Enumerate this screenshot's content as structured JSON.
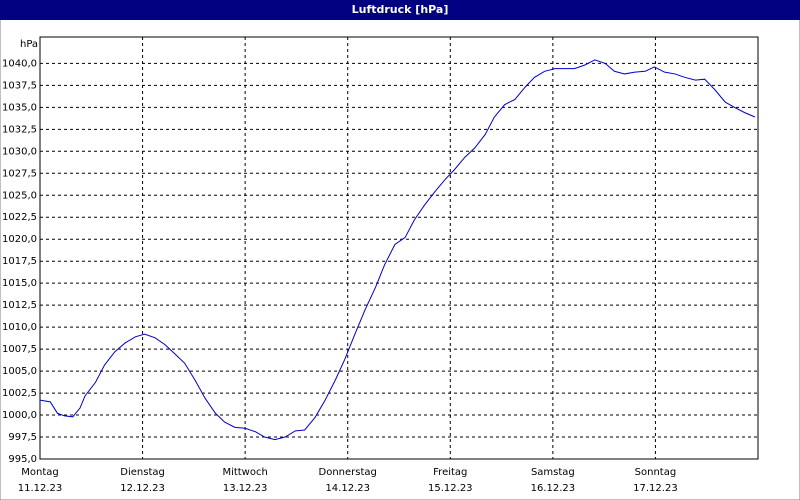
{
  "chart_data": {
    "type": "line",
    "title": "Luftdruck [hPa]",
    "y_label": "hPa",
    "x": [
      0,
      0.1,
      0.17,
      0.24,
      0.32,
      0.39,
      0.44,
      0.54,
      0.63,
      0.73,
      0.83,
      0.93,
      1.02,
      1.12,
      1.22,
      1.32,
      1.41,
      1.51,
      1.61,
      1.71,
      1.8,
      1.9,
      2.0,
      2.1,
      2.19,
      2.29,
      2.39,
      2.49,
      2.58,
      2.68,
      2.78,
      2.88,
      2.97,
      3.07,
      3.17,
      3.27,
      3.36,
      3.46,
      3.56,
      3.65,
      3.75,
      3.85,
      3.95,
      4.04,
      4.14,
      4.24,
      4.34,
      4.43,
      4.53,
      4.63,
      4.73,
      4.82,
      4.92,
      5.02,
      5.12,
      5.21,
      5.31,
      5.41,
      5.51,
      5.6,
      5.7,
      5.8,
      5.9,
      5.99,
      6.09,
      6.19,
      6.29,
      6.39,
      6.48,
      6.58,
      6.68,
      6.77,
      6.87,
      6.97
    ],
    "values": [
      1001.7,
      1001.5,
      1000.2,
      999.9,
      999.8,
      1000.8,
      1002.2,
      1003.7,
      1005.7,
      1007.2,
      1008.2,
      1008.9,
      1009.2,
      1008.8,
      1008.0,
      1006.9,
      1005.9,
      1004.0,
      1001.9,
      1000.2,
      999.2,
      998.6,
      998.5,
      998.1,
      997.5,
      997.2,
      997.5,
      998.2,
      998.3,
      999.7,
      1001.7,
      1004.0,
      1006.3,
      1009.2,
      1012.0,
      1014.5,
      1017.1,
      1019.4,
      1020.2,
      1022.2,
      1023.9,
      1025.4,
      1026.8,
      1027.9,
      1029.3,
      1030.4,
      1031.9,
      1033.9,
      1035.3,
      1035.9,
      1037.3,
      1038.4,
      1039.1,
      1039.4,
      1039.4,
      1039.4,
      1039.8,
      1040.4,
      1040.0,
      1039.1,
      1038.8,
      1039.0,
      1039.1,
      1039.6,
      1039.0,
      1038.8,
      1038.4,
      1038.1,
      1038.2,
      1037.0,
      1035.6,
      1035.0,
      1034.4,
      1033.9
    ],
    "color": "#0000cc",
    "xlim": [
      0,
      7
    ],
    "xticks": [
      {
        "value": 0,
        "label": "Montag",
        "date": "11.12.23"
      },
      {
        "value": 1,
        "label": "Dienstag",
        "date": "12.12.23"
      },
      {
        "value": 2,
        "label": "Mittwoch",
        "date": "13.12.23"
      },
      {
        "value": 3,
        "label": "Donnerstag",
        "date": "14.12.23"
      },
      {
        "value": 4,
        "label": "Freitag",
        "date": "15.12.23"
      },
      {
        "value": 5,
        "label": "Samstag",
        "date": "16.12.23"
      },
      {
        "value": 6,
        "label": "Sonntag",
        "date": "17.12.23"
      }
    ],
    "ylim": [
      995,
      1043
    ],
    "yticks": [
      {
        "value": 995,
        "label": "995,0"
      },
      {
        "value": 997.5,
        "label": "997,5"
      },
      {
        "value": 1000,
        "label": "1000,0"
      },
      {
        "value": 1002.5,
        "label": "1002,5"
      },
      {
        "value": 1005,
        "label": "1005,0"
      },
      {
        "value": 1007.5,
        "label": "1007,5"
      },
      {
        "value": 1010,
        "label": "1010,0"
      },
      {
        "value": 1012.5,
        "label": "1012,5"
      },
      {
        "value": 1015,
        "label": "1015,0"
      },
      {
        "value": 1017.5,
        "label": "1017,5"
      },
      {
        "value": 1020,
        "label": "1020,0"
      },
      {
        "value": 1022.5,
        "label": "1022,5"
      },
      {
        "value": 1025,
        "label": "1025,0"
      },
      {
        "value": 1027.5,
        "label": "1027,5"
      },
      {
        "value": 1030,
        "label": "1030,0"
      },
      {
        "value": 1032.5,
        "label": "1032,5"
      },
      {
        "value": 1035,
        "label": "1035,0"
      },
      {
        "value": 1037.5,
        "label": "1037,5"
      },
      {
        "value": 1040,
        "label": "1040,0"
      }
    ],
    "grid": true
  }
}
